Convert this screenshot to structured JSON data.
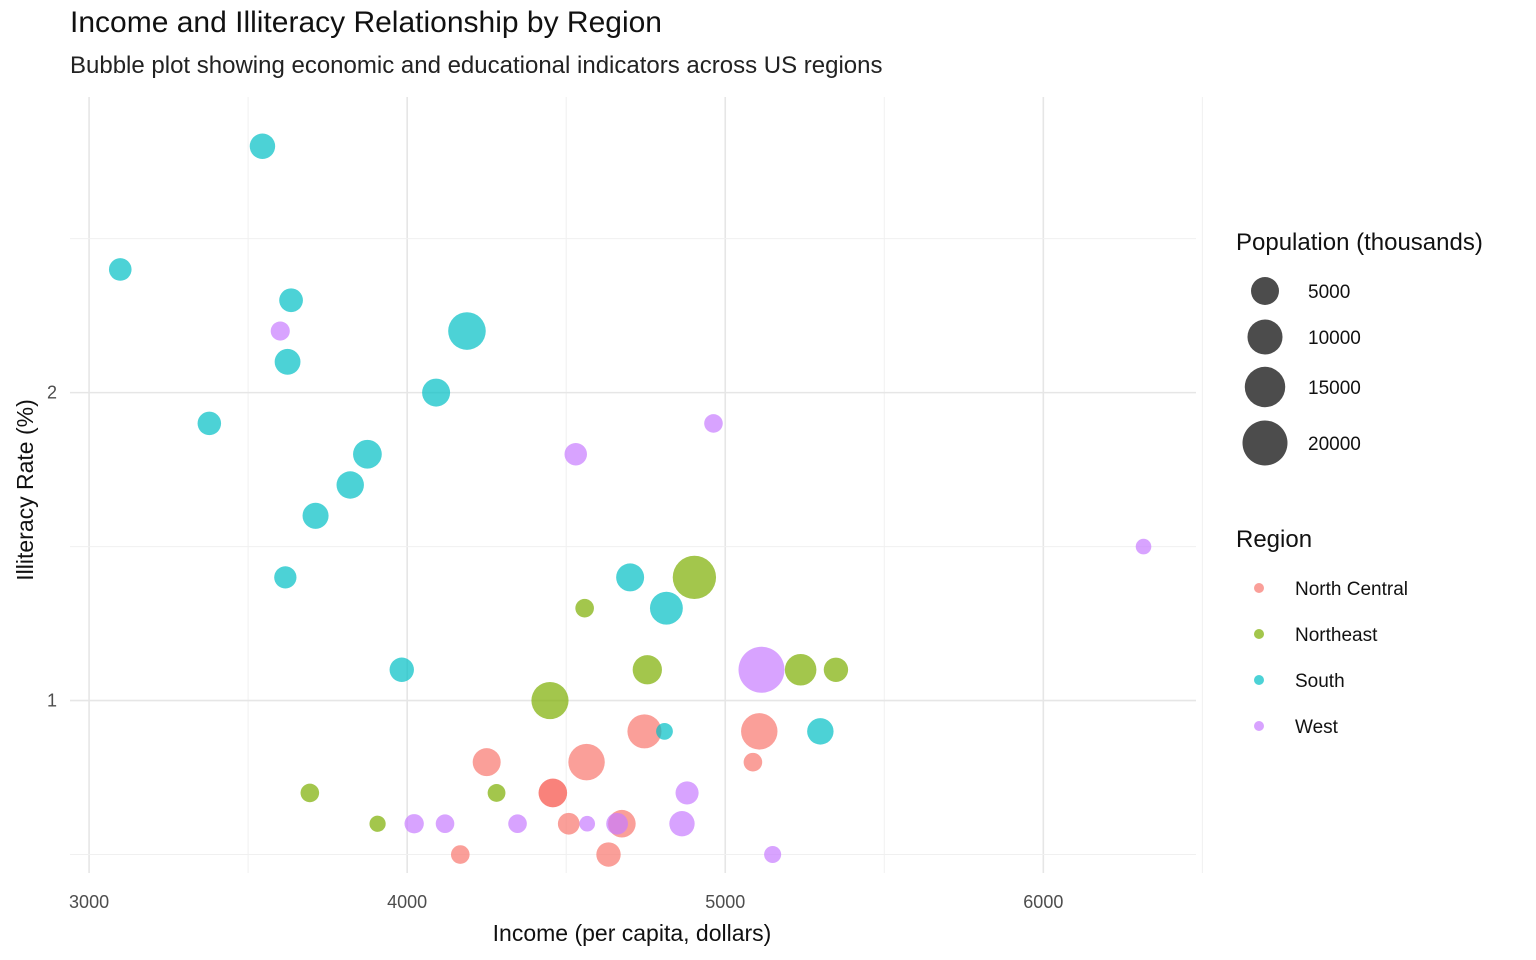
{
  "chart_data": {
    "type": "scatter",
    "title": "Income and Illiteracy Relationship by Region",
    "subtitle": "Bubble plot showing economic and educational indicators across US regions",
    "xlabel": "Income (per capita, dollars)",
    "ylabel": "Illiteracy Rate (%)",
    "xlim": [
      2940,
      6480
    ],
    "ylim": [
      0.44,
      2.96
    ],
    "x_ticks": [
      3000,
      4000,
      5000,
      6000
    ],
    "y_ticks": [
      1,
      2
    ],
    "grid": true,
    "size_legend": {
      "title": "Population (thousands)",
      "entries": [
        {
          "label": "5000",
          "value": 5000
        },
        {
          "label": "10000",
          "value": 10000
        },
        {
          "label": "15000",
          "value": 15000
        },
        {
          "label": "20000",
          "value": 20000
        }
      ]
    },
    "color_legend": {
      "title": "Region",
      "placement": "right",
      "entries": [
        {
          "label": "North Central",
          "color": "#F8766D"
        },
        {
          "label": "Northeast",
          "color": "#7CAE00"
        },
        {
          "label": "South",
          "color": "#00BFC4"
        },
        {
          "label": "West",
          "color": "#C77CFF"
        }
      ]
    },
    "series": [
      {
        "name": "North Central",
        "color": "#F8766D",
        "points": [
          {
            "x": 4458,
            "y": 0.7,
            "size": 5313
          },
          {
            "x": 4458,
            "y": 0.7,
            "size": 5313
          },
          {
            "x": 4746,
            "y": 0.9,
            "size": 9200
          },
          {
            "x": 5107,
            "y": 0.9,
            "size": 11197
          },
          {
            "x": 4250,
            "y": 0.8,
            "size": 5000
          },
          {
            "x": 4564,
            "y": 0.8,
            "size": 11200
          },
          {
            "x": 5087,
            "y": 0.8,
            "size": 1000
          },
          {
            "x": 4508,
            "y": 0.6,
            "size": 2000
          },
          {
            "x": 4675,
            "y": 0.6,
            "size": 4767
          },
          {
            "x": 4633,
            "y": 0.5,
            "size": 3100
          },
          {
            "x": 4167,
            "y": 0.5,
            "size": 1000
          }
        ]
      },
      {
        "name": "Northeast",
        "color": "#7CAE00",
        "points": [
          {
            "x": 4903,
            "y": 1.4,
            "size": 18076
          },
          {
            "x": 4449,
            "y": 1.0,
            "size": 11860
          },
          {
            "x": 5237,
            "y": 1.1,
            "size": 7333
          },
          {
            "x": 5348,
            "y": 1.1,
            "size": 3100
          },
          {
            "x": 4755,
            "y": 1.1,
            "size": 5800
          },
          {
            "x": 4558,
            "y": 1.3,
            "size": 1000
          },
          {
            "x": 3694,
            "y": 0.7,
            "size": 1000
          },
          {
            "x": 4281,
            "y": 0.7,
            "size": 812
          },
          {
            "x": 3907,
            "y": 0.6,
            "size": 472
          }
        ]
      },
      {
        "name": "South",
        "color": "#00BFC4",
        "points": [
          {
            "x": 3545,
            "y": 2.8,
            "size": 3615
          },
          {
            "x": 3098,
            "y": 2.4,
            "size": 2341
          },
          {
            "x": 3635,
            "y": 2.3,
            "size": 2816
          },
          {
            "x": 4188,
            "y": 2.2,
            "size": 12237
          },
          {
            "x": 3624,
            "y": 2.1,
            "size": 3806
          },
          {
            "x": 4091,
            "y": 2.0,
            "size": 5000
          },
          {
            "x": 3378,
            "y": 1.9,
            "size": 2715
          },
          {
            "x": 3875,
            "y": 1.8,
            "size": 5441
          },
          {
            "x": 3821,
            "y": 1.7,
            "size": 4667
          },
          {
            "x": 3712,
            "y": 1.6,
            "size": 3921
          },
          {
            "x": 3617,
            "y": 1.4,
            "size": 2212
          },
          {
            "x": 3983,
            "y": 1.1,
            "size": 3110
          },
          {
            "x": 4701,
            "y": 1.4,
            "size": 5000
          },
          {
            "x": 4815,
            "y": 1.3,
            "size": 8277
          },
          {
            "x": 4809,
            "y": 0.9,
            "size": 579
          },
          {
            "x": 5299,
            "y": 0.9,
            "size": 4122
          }
        ]
      },
      {
        "name": "West",
        "color": "#C77CFF",
        "points": [
          {
            "x": 3601,
            "y": 2.2,
            "size": 1144
          },
          {
            "x": 4530,
            "y": 1.8,
            "size": 2284
          },
          {
            "x": 4963,
            "y": 1.9,
            "size": 1000
          },
          {
            "x": 6315,
            "y": 1.5,
            "size": 365
          },
          {
            "x": 5114,
            "y": 1.1,
            "size": 21198
          },
          {
            "x": 4880,
            "y": 0.7,
            "size": 2541
          },
          {
            "x": 4864,
            "y": 0.6,
            "size": 3559
          },
          {
            "x": 4022,
            "y": 0.6,
            "size": 1200
          },
          {
            "x": 4119,
            "y": 0.6,
            "size": 1000
          },
          {
            "x": 4347,
            "y": 0.6,
            "size": 1000
          },
          {
            "x": 4566,
            "y": 0.6,
            "size": 376
          },
          {
            "x": 4660,
            "y": 0.6,
            "size": 2000
          },
          {
            "x": 5149,
            "y": 0.5,
            "size": 637
          }
        ]
      }
    ]
  }
}
